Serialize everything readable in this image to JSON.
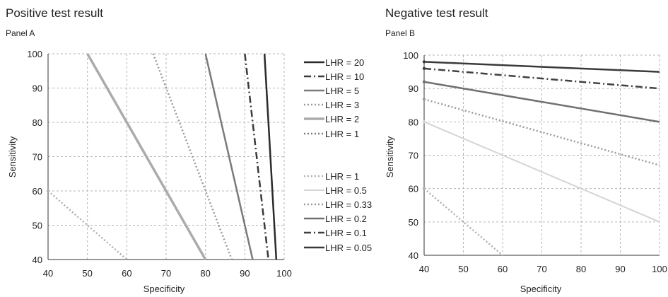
{
  "styles": {
    "s20": {
      "color": "#2b2b2b",
      "width": 2.5,
      "dash": ""
    },
    "s10": {
      "color": "#3a3a3a",
      "width": 2.5,
      "dash": "10 4 2 4"
    },
    "s5": {
      "color": "#7a7a7a",
      "width": 2.5,
      "dash": ""
    },
    "s3": {
      "color": "#9a9a9a",
      "width": 2.5,
      "dash": "2 3"
    },
    "s2": {
      "color": "#ababab",
      "width": 3.5,
      "dash": ""
    },
    "s1": {
      "color": "#7a7a7a",
      "width": 2.5,
      "dash": "2 3"
    },
    "n1": {
      "color": "#b0b0b0",
      "width": 2.5,
      "dash": "2 3"
    },
    "n05": {
      "color": "#d4d4d4",
      "width": 2.0,
      "dash": ""
    },
    "n033": {
      "color": "#9a9a9a",
      "width": 2.5,
      "dash": "2 3"
    },
    "n02": {
      "color": "#707070",
      "width": 2.5,
      "dash": ""
    },
    "n01": {
      "color": "#404040",
      "width": 2.5,
      "dash": "10 4 2 4"
    },
    "n005": {
      "color": "#3a3a3a",
      "width": 2.5,
      "dash": ""
    }
  },
  "chart_data": [
    {
      "type": "line",
      "title": "Positive test result",
      "subtitle": "Panel A",
      "xlabel": "Specificity",
      "ylabel": "Sensitivity",
      "xlim": [
        40,
        100
      ],
      "ylim": [
        40,
        100
      ],
      "x_ticks": [
        "40",
        "50",
        "60",
        "70",
        "80",
        "90",
        "100"
      ],
      "y_ticks": [
        "40",
        "50",
        "60",
        "70",
        "80",
        "90",
        "100"
      ],
      "grid": true,
      "legend_position": "right",
      "legend": [
        {
          "label": "LHR = 20",
          "style": "s20"
        },
        {
          "label": "LHR = 10",
          "style": "s10"
        },
        {
          "label": "LHR = 5",
          "style": "s5"
        },
        {
          "label": "LHR = 3",
          "style": "s3"
        },
        {
          "label": "LHR = 2",
          "style": "s2"
        },
        {
          "label": "LHR = 1",
          "style": "s1"
        },
        {
          "label": "LHR = 1",
          "style": "n1"
        },
        {
          "label": "LHR = 0.5",
          "style": "n05"
        },
        {
          "label": "LHR = 0.33",
          "style": "n033"
        },
        {
          "label": "LHR = 0.2",
          "style": "n02"
        },
        {
          "label": "LHR = 0.1",
          "style": "n01"
        },
        {
          "label": "LHR = 0.05",
          "style": "n005"
        }
      ],
      "series": [
        {
          "style": "s20",
          "x": [
            95,
            98
          ],
          "y": [
            100,
            40
          ]
        },
        {
          "style": "s10",
          "x": [
            90,
            96
          ],
          "y": [
            100,
            40
          ]
        },
        {
          "style": "s5",
          "x": [
            80,
            92
          ],
          "y": [
            100,
            40
          ]
        },
        {
          "style": "s3",
          "x": [
            66.7,
            86.7
          ],
          "y": [
            100,
            40
          ]
        },
        {
          "style": "s2",
          "x": [
            50,
            80
          ],
          "y": [
            100,
            40
          ]
        },
        {
          "style": "n1",
          "x": [
            40,
            60
          ],
          "y": [
            60,
            40
          ]
        }
      ]
    },
    {
      "type": "line",
      "title": "Negative  test result",
      "subtitle": "Panel B",
      "xlabel": "Specificity",
      "ylabel": "Sensitivity",
      "xlim": [
        40,
        100
      ],
      "ylim": [
        40,
        100
      ],
      "x_ticks": [
        "40",
        "50",
        "60",
        "70",
        "80",
        "90",
        "100"
      ],
      "y_ticks": [
        "40",
        "50",
        "60",
        "70",
        "80",
        "90",
        "100"
      ],
      "grid": true,
      "series": [
        {
          "style": "n005",
          "x": [
            40,
            100
          ],
          "y": [
            98,
            95
          ]
        },
        {
          "style": "n01",
          "x": [
            40,
            100
          ],
          "y": [
            96,
            90
          ]
        },
        {
          "style": "n02",
          "x": [
            40,
            100
          ],
          "y": [
            92,
            80
          ]
        },
        {
          "style": "n033",
          "x": [
            40,
            100
          ],
          "y": [
            86.8,
            67
          ]
        },
        {
          "style": "n05",
          "x": [
            40,
            100
          ],
          "y": [
            80,
            50
          ]
        },
        {
          "style": "n1",
          "x": [
            40,
            60
          ],
          "y": [
            60,
            40
          ]
        }
      ]
    }
  ]
}
